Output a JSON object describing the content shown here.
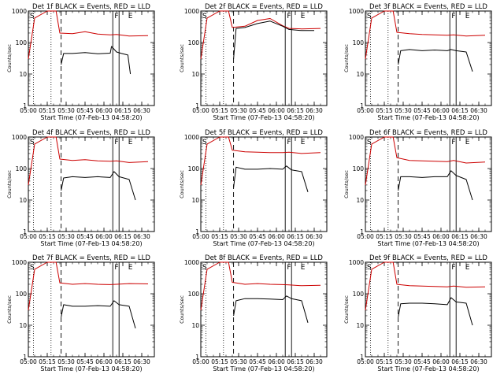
{
  "figure": {
    "background": "#ffffff",
    "events_color": "#000000",
    "lld_color": "#cc0000"
  },
  "chart_data": [
    {
      "type": "line",
      "title": "Det 1f BLACK = Events, RED = LLD",
      "xlabel": "Start Time (07-Feb-13 04:58:20)",
      "ylabel": "Counts/sec",
      "ylog": true,
      "ylim": [
        1,
        1000
      ],
      "xlim": [
        "05:00",
        "06:40"
      ],
      "x_ticks": [
        "05:00",
        "05:15",
        "05:30",
        "05:45",
        "06:00",
        "06:15",
        "06:30"
      ],
      "y_ticks": [
        "1",
        "10",
        "100",
        "1000"
      ],
      "markers": {
        "dotted": [
          "05:04",
          "05:18"
        ],
        "dashed": [
          "05:26"
        ],
        "solid": [
          "06:07",
          "06:12"
        ]
      },
      "labels": {
        "S": "05:03",
        "F": "06:10",
        "E": "06:21"
      },
      "series": [
        {
          "name": "Events",
          "color": "#000000",
          "x": [
            "05:26",
            "05:28",
            "05:35",
            "05:45",
            "05:55",
            "06:05",
            "06:06",
            "06:10",
            "06:14",
            "06:19",
            "06:21"
          ],
          "y": [
            20,
            45,
            45,
            48,
            44,
            46,
            75,
            50,
            45,
            40,
            10
          ]
        },
        {
          "name": "LLD",
          "color": "#cc0000",
          "x": [
            "05:00",
            "05:05",
            "05:15",
            "05:22",
            "05:25",
            "05:35",
            "05:45",
            "05:55",
            "06:05",
            "06:10",
            "06:20",
            "06:35"
          ],
          "y": [
            30,
            600,
            1000,
            1000,
            200,
            190,
            220,
            185,
            175,
            180,
            160,
            165
          ]
        }
      ]
    },
    {
      "type": "line",
      "title": "Det 2f BLACK = Events, RED = LLD",
      "xlabel": "Start Time (07-Feb-13 04:58:20)",
      "ylabel": "Counts/sec",
      "ylog": true,
      "ylim": [
        1,
        1000
      ],
      "xlim": [
        "05:00",
        "06:40"
      ],
      "x_ticks": [
        "05:00",
        "05:15",
        "05:30",
        "05:45",
        "06:00",
        "06:15",
        "06:30"
      ],
      "y_ticks": [
        "1",
        "10",
        "100",
        "1000"
      ],
      "markers": {
        "dotted": [
          "05:04",
          "05:18"
        ],
        "dashed": [
          "05:26"
        ],
        "solid": [
          "06:07",
          "06:12"
        ]
      },
      "labels": {
        "S": "05:03",
        "F": "06:10",
        "E": "06:21"
      },
      "series": [
        {
          "name": "Events",
          "color": "#000000",
          "x": [
            "05:26",
            "05:28",
            "05:35",
            "05:45",
            "05:55",
            "06:05",
            "06:10",
            "06:20",
            "06:30"
          ],
          "y": [
            30,
            280,
            300,
            400,
            480,
            330,
            260,
            240,
            240
          ]
        },
        {
          "name": "LLD",
          "color": "#cc0000",
          "x": [
            "05:00",
            "05:05",
            "05:15",
            "05:22",
            "05:25",
            "05:35",
            "05:45",
            "05:55",
            "06:05",
            "06:10",
            "06:20",
            "06:35"
          ],
          "y": [
            30,
            600,
            1000,
            1000,
            300,
            330,
            500,
            580,
            340,
            280,
            270,
            280
          ]
        }
      ]
    },
    {
      "type": "line",
      "title": "Det 3f BLACK = Events, RED = LLD",
      "xlabel": "Start Time (07-Feb-13 04:58:20)",
      "ylabel": "Counts/sec",
      "ylog": true,
      "ylim": [
        1,
        1000
      ],
      "xlim": [
        "05:00",
        "06:40"
      ],
      "x_ticks": [
        "05:00",
        "05:15",
        "05:30",
        "05:45",
        "06:00",
        "06:15",
        "06:30"
      ],
      "y_ticks": [
        "1",
        "10",
        "100",
        "1000"
      ],
      "markers": {
        "dotted": [
          "05:04",
          "05:18"
        ],
        "dashed": [
          "05:26"
        ],
        "solid": [
          "06:07",
          "06:12"
        ]
      },
      "labels": {
        "S": "05:03",
        "F": "06:10",
        "E": "06:21"
      },
      "series": [
        {
          "name": "Events",
          "color": "#000000",
          "x": [
            "05:26",
            "05:28",
            "05:35",
            "05:45",
            "05:55",
            "06:05",
            "06:08",
            "06:12",
            "06:20",
            "06:25"
          ],
          "y": [
            20,
            55,
            60,
            55,
            58,
            55,
            60,
            55,
            50,
            12
          ]
        },
        {
          "name": "LLD",
          "color": "#cc0000",
          "x": [
            "05:00",
            "05:05",
            "05:15",
            "05:22",
            "05:25",
            "05:35",
            "05:45",
            "05:55",
            "06:05",
            "06:10",
            "06:20",
            "06:35"
          ],
          "y": [
            30,
            600,
            1000,
            1000,
            210,
            190,
            180,
            175,
            170,
            175,
            160,
            170
          ]
        }
      ]
    },
    {
      "type": "line",
      "title": "Det 4f BLACK = Events, RED = LLD",
      "xlabel": "Start Time (07-Feb-13 04:58:20)",
      "ylabel": "Counts/sec",
      "ylog": true,
      "ylim": [
        1,
        1000
      ],
      "xlim": [
        "05:00",
        "06:40"
      ],
      "x_ticks": [
        "05:00",
        "05:15",
        "05:30",
        "05:45",
        "06:00",
        "06:15",
        "06:30"
      ],
      "y_ticks": [
        "1",
        "10",
        "100",
        "1000"
      ],
      "markers": {
        "dotted": [
          "05:04",
          "05:18"
        ],
        "dashed": [
          "05:26"
        ],
        "solid": [
          "06:07",
          "06:12"
        ]
      },
      "labels": {
        "S": "05:03",
        "F": "06:10",
        "E": "06:21"
      },
      "series": [
        {
          "name": "Events",
          "color": "#000000",
          "x": [
            "05:26",
            "05:28",
            "05:35",
            "05:45",
            "05:55",
            "06:05",
            "06:08",
            "06:12",
            "06:20",
            "06:25"
          ],
          "y": [
            20,
            50,
            55,
            52,
            55,
            52,
            80,
            55,
            45,
            10
          ]
        },
        {
          "name": "LLD",
          "color": "#cc0000",
          "x": [
            "05:00",
            "05:05",
            "05:15",
            "05:22",
            "05:25",
            "05:35",
            "05:45",
            "05:55",
            "06:05",
            "06:10",
            "06:20",
            "06:35"
          ],
          "y": [
            30,
            600,
            1000,
            1000,
            200,
            180,
            190,
            175,
            170,
            175,
            155,
            165
          ]
        }
      ]
    },
    {
      "type": "line",
      "title": "Det 5f BLACK = Events, RED = LLD",
      "xlabel": "Start Time (07-Feb-13 04:58:20)",
      "ylabel": "Counts/sec",
      "ylog": true,
      "ylim": [
        1,
        1000
      ],
      "xlim": [
        "05:00",
        "06:40"
      ],
      "x_ticks": [
        "05:00",
        "05:15",
        "05:30",
        "05:45",
        "06:00",
        "06:15",
        "06:30"
      ],
      "y_ticks": [
        "1",
        "10",
        "100",
        "1000"
      ],
      "markers": {
        "dotted": [
          "05:04",
          "05:18"
        ],
        "dashed": [
          "05:26"
        ],
        "solid": [
          "06:07",
          "06:12"
        ]
      },
      "labels": {
        "S": "05:03",
        "F": "06:10",
        "E": "06:21"
      },
      "series": [
        {
          "name": "Events",
          "color": "#000000",
          "x": [
            "05:26",
            "05:28",
            "05:35",
            "05:45",
            "05:55",
            "06:05",
            "06:08",
            "06:12",
            "06:20",
            "06:25"
          ],
          "y": [
            25,
            110,
            95,
            95,
            100,
            95,
            120,
            90,
            80,
            18
          ]
        },
        {
          "name": "LLD",
          "color": "#cc0000",
          "x": [
            "05:00",
            "05:05",
            "05:15",
            "05:22",
            "05:25",
            "05:35",
            "05:45",
            "05:55",
            "06:05",
            "06:10",
            "06:20",
            "06:35"
          ],
          "y": [
            30,
            600,
            1000,
            1000,
            380,
            340,
            330,
            320,
            320,
            330,
            300,
            320
          ]
        }
      ]
    },
    {
      "type": "line",
      "title": "Det 6f BLACK = Events, RED = LLD",
      "xlabel": "Start Time (07-Feb-13 04:58:20)",
      "ylabel": "Counts/sec",
      "ylog": true,
      "ylim": [
        1,
        1000
      ],
      "xlim": [
        "05:00",
        "06:40"
      ],
      "x_ticks": [
        "05:00",
        "05:15",
        "05:30",
        "05:45",
        "06:00",
        "06:15",
        "06:30"
      ],
      "y_ticks": [
        "1",
        "10",
        "100",
        "1000"
      ],
      "markers": {
        "dotted": [
          "05:04",
          "05:18"
        ],
        "dashed": [
          "05:26"
        ],
        "solid": [
          "06:07",
          "06:12"
        ]
      },
      "labels": {
        "S": "05:03",
        "F": "06:10",
        "E": "06:21"
      },
      "series": [
        {
          "name": "Events",
          "color": "#000000",
          "x": [
            "05:26",
            "05:28",
            "05:35",
            "05:45",
            "05:55",
            "06:05",
            "06:08",
            "06:12",
            "06:20",
            "06:25"
          ],
          "y": [
            20,
            55,
            55,
            52,
            55,
            55,
            85,
            60,
            45,
            10
          ]
        },
        {
          "name": "LLD",
          "color": "#cc0000",
          "x": [
            "05:00",
            "05:05",
            "05:15",
            "05:22",
            "05:25",
            "05:35",
            "05:45",
            "05:55",
            "06:05",
            "06:10",
            "06:20",
            "06:35"
          ],
          "y": [
            30,
            600,
            1000,
            1000,
            220,
            180,
            175,
            170,
            165,
            180,
            150,
            160
          ]
        }
      ]
    },
    {
      "type": "line",
      "title": "Det 7f BLACK = Events, RED = LLD",
      "xlabel": "Start Time (07-Feb-13 04:58:20)",
      "ylabel": "Counts/sec",
      "ylog": true,
      "ylim": [
        1,
        1000
      ],
      "xlim": [
        "05:00",
        "06:40"
      ],
      "x_ticks": [
        "05:00",
        "05:15",
        "05:30",
        "05:45",
        "06:00",
        "06:15",
        "06:30"
      ],
      "y_ticks": [
        "1",
        "10",
        "100",
        "1000"
      ],
      "markers": {
        "dotted": [
          "05:04",
          "05:18"
        ],
        "dashed": [
          "05:26"
        ],
        "solid": [
          "06:07",
          "06:12"
        ]
      },
      "labels": {
        "S": "05:03",
        "F": "06:10",
        "E": "06:21"
      },
      "series": [
        {
          "name": "Events",
          "color": "#000000",
          "x": [
            "05:26",
            "05:28",
            "05:35",
            "05:45",
            "05:55",
            "06:05",
            "06:08",
            "06:12",
            "06:20",
            "06:25"
          ],
          "y": [
            18,
            45,
            40,
            40,
            42,
            40,
            60,
            45,
            40,
            8
          ]
        },
        {
          "name": "LLD",
          "color": "#cc0000",
          "x": [
            "05:00",
            "05:05",
            "05:15",
            "05:22",
            "05:25",
            "05:35",
            "05:45",
            "05:55",
            "06:05",
            "06:10",
            "06:20",
            "06:35"
          ],
          "y": [
            30,
            600,
            1000,
            1000,
            220,
            200,
            210,
            200,
            195,
            200,
            210,
            205
          ]
        }
      ]
    },
    {
      "type": "line",
      "title": "Det 8f BLACK = Events, RED = LLD",
      "xlabel": "Start Time (07-Feb-13 04:58:20)",
      "ylabel": "Counts/sec",
      "ylog": true,
      "ylim": [
        1,
        1000
      ],
      "xlim": [
        "05:00",
        "06:40"
      ],
      "x_ticks": [
        "05:00",
        "05:15",
        "05:30",
        "05:45",
        "06:00",
        "06:15",
        "06:30"
      ],
      "y_ticks": [
        "1",
        "10",
        "100",
        "1000"
      ],
      "markers": {
        "dotted": [
          "05:04",
          "05:18"
        ],
        "dashed": [
          "05:26"
        ],
        "solid": [
          "06:07",
          "06:12"
        ]
      },
      "labels": {
        "S": "05:03",
        "F": "06:10",
        "E": "06:21"
      },
      "series": [
        {
          "name": "Events",
          "color": "#000000",
          "x": [
            "05:26",
            "05:28",
            "05:35",
            "05:45",
            "05:55",
            "06:05",
            "06:08",
            "06:12",
            "06:20",
            "06:25"
          ],
          "y": [
            20,
            60,
            70,
            70,
            68,
            65,
            85,
            70,
            60,
            12
          ]
        },
        {
          "name": "LLD",
          "color": "#cc0000",
          "x": [
            "05:00",
            "05:05",
            "05:15",
            "05:22",
            "05:25",
            "05:35",
            "05:45",
            "05:55",
            "06:05",
            "06:10",
            "06:20",
            "06:35"
          ],
          "y": [
            30,
            600,
            1000,
            1000,
            230,
            200,
            210,
            200,
            195,
            190,
            180,
            185
          ]
        }
      ]
    },
    {
      "type": "line",
      "title": "Det 9f BLACK = Events, RED = LLD",
      "xlabel": "Start Time (07-Feb-13 04:58:20)",
      "ylabel": "Counts/sec",
      "ylog": true,
      "ylim": [
        1,
        1000
      ],
      "xlim": [
        "05:00",
        "06:40"
      ],
      "x_ticks": [
        "05:00",
        "05:15",
        "05:30",
        "05:45",
        "06:00",
        "06:15",
        "06:30"
      ],
      "y_ticks": [
        "1",
        "10",
        "100",
        "1000"
      ],
      "markers": {
        "dotted": [
          "05:04",
          "05:18"
        ],
        "dashed": [
          "05:26"
        ],
        "solid": [
          "06:07",
          "06:12"
        ]
      },
      "labels": {
        "S": "05:03",
        "F": "06:10",
        "E": "06:21"
      },
      "series": [
        {
          "name": "Events",
          "color": "#000000",
          "x": [
            "05:26",
            "05:28",
            "05:35",
            "05:45",
            "05:55",
            "06:05",
            "06:08",
            "06:12",
            "06:20",
            "06:25"
          ],
          "y": [
            18,
            48,
            50,
            50,
            48,
            45,
            75,
            55,
            50,
            10
          ]
        },
        {
          "name": "LLD",
          "color": "#cc0000",
          "x": [
            "05:00",
            "05:05",
            "05:15",
            "05:22",
            "05:25",
            "05:35",
            "05:45",
            "05:55",
            "06:05",
            "06:10",
            "06:20",
            "06:35"
          ],
          "y": [
            30,
            600,
            1000,
            1000,
            200,
            180,
            175,
            170,
            165,
            175,
            160,
            165
          ]
        }
      ]
    }
  ]
}
